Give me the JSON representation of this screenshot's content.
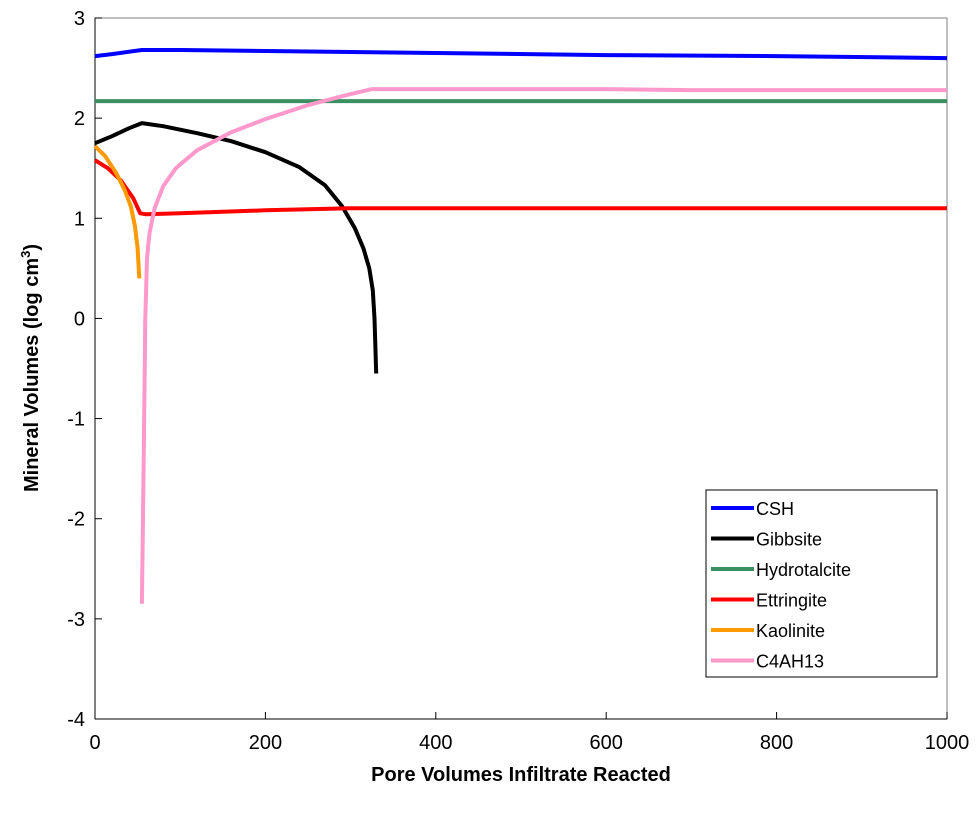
{
  "chart_data": {
    "type": "line",
    "xlabel": "Pore Volumes Infiltrate Reacted",
    "ylabel": "Mineral Volumes (log cm",
    "ylabel_superscript": "3",
    "ylabel_suffix": ")",
    "xlim": [
      0,
      1000
    ],
    "ylim": [
      -4,
      3
    ],
    "xticks": [
      0,
      200,
      400,
      600,
      800,
      1000
    ],
    "yticks": [
      -4,
      -3,
      -2,
      -1,
      0,
      1,
      2,
      3
    ],
    "grid": false,
    "legend_position": "lower-right",
    "series": [
      {
        "name": "CSH",
        "color": "#0000ff",
        "points": [
          [
            0,
            2.62
          ],
          [
            20,
            2.64
          ],
          [
            55,
            2.68
          ],
          [
            100,
            2.68
          ],
          [
            200,
            2.67
          ],
          [
            300,
            2.66
          ],
          [
            400,
            2.65
          ],
          [
            600,
            2.63
          ],
          [
            800,
            2.62
          ],
          [
            1000,
            2.6
          ]
        ]
      },
      {
        "name": "Gibbsite",
        "color": "#000000",
        "points": [
          [
            0,
            1.75
          ],
          [
            20,
            1.82
          ],
          [
            40,
            1.9
          ],
          [
            55,
            1.95
          ],
          [
            80,
            1.92
          ],
          [
            120,
            1.85
          ],
          [
            160,
            1.77
          ],
          [
            200,
            1.66
          ],
          [
            240,
            1.51
          ],
          [
            270,
            1.33
          ],
          [
            290,
            1.12
          ],
          [
            305,
            0.9
          ],
          [
            315,
            0.7
          ],
          [
            322,
            0.5
          ],
          [
            326,
            0.28
          ],
          [
            328,
            0
          ],
          [
            330,
            -0.55
          ]
        ]
      },
      {
        "name": "Hydrotalcite",
        "color": "#3a9060",
        "points": [
          [
            0,
            2.17
          ],
          [
            200,
            2.17
          ],
          [
            400,
            2.17
          ],
          [
            600,
            2.17
          ],
          [
            800,
            2.17
          ],
          [
            1000,
            2.17
          ]
        ]
      },
      {
        "name": "Ettringite",
        "color": "#ff0000",
        "points": [
          [
            0,
            1.58
          ],
          [
            15,
            1.5
          ],
          [
            30,
            1.38
          ],
          [
            45,
            1.2
          ],
          [
            53,
            1.05
          ],
          [
            60,
            1.04
          ],
          [
            100,
            1.05
          ],
          [
            200,
            1.08
          ],
          [
            300,
            1.1
          ],
          [
            400,
            1.1
          ],
          [
            600,
            1.1
          ],
          [
            800,
            1.1
          ],
          [
            1000,
            1.1
          ]
        ]
      },
      {
        "name": "Kaolinite",
        "color": "#ff9900",
        "points": [
          [
            0,
            1.72
          ],
          [
            12,
            1.62
          ],
          [
            25,
            1.45
          ],
          [
            35,
            1.28
          ],
          [
            42,
            1.12
          ],
          [
            47,
            0.92
          ],
          [
            50,
            0.7
          ],
          [
            52,
            0.4
          ]
        ]
      },
      {
        "name": "C4AH13",
        "color": "#ff99cc",
        "points": [
          [
            55,
            -2.85
          ],
          [
            57,
            -1.5
          ],
          [
            59,
            0
          ],
          [
            61,
            0.6
          ],
          [
            64,
            0.85
          ],
          [
            70,
            1.1
          ],
          [
            80,
            1.32
          ],
          [
            95,
            1.5
          ],
          [
            120,
            1.68
          ],
          [
            160,
            1.86
          ],
          [
            200,
            1.99
          ],
          [
            250,
            2.13
          ],
          [
            300,
            2.24
          ],
          [
            325,
            2.29
          ],
          [
            400,
            2.29
          ],
          [
            600,
            2.29
          ],
          [
            700,
            2.28
          ],
          [
            1000,
            2.28
          ]
        ]
      }
    ]
  }
}
